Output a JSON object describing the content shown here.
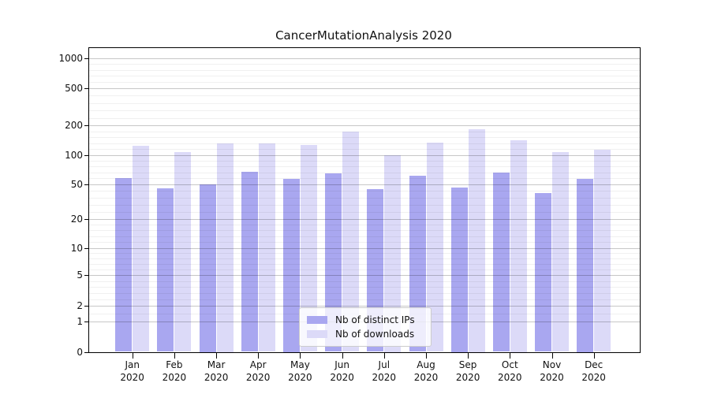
{
  "title": "CancerMutationAnalysis 2020",
  "year": "2020",
  "months": [
    "Jan",
    "Feb",
    "Mar",
    "Apr",
    "May",
    "Jun",
    "Jul",
    "Aug",
    "Sep",
    "Oct",
    "Nov",
    "Dec"
  ],
  "colors": {
    "distinct_ips_bar": "#a9a7f0",
    "downloads_bar": "#dcdaf8",
    "major_grid": "rgba(0,0,0,0.22)",
    "minor_grid": "rgba(0,0,0,0.06)"
  },
  "legend": {
    "items": [
      {
        "label": "Nb of distinct IPs",
        "color": "#a9a7f0"
      },
      {
        "label": "Nb of downloads",
        "color": "#dcdaf8"
      }
    ]
  },
  "chart_data": {
    "type": "bar",
    "title": "CancerMutationAnalysis 2020",
    "categories": [
      "Jan 2020",
      "Feb 2020",
      "Mar 2020",
      "Apr 2020",
      "May 2020",
      "Jun 2020",
      "Jul 2020",
      "Aug 2020",
      "Sep 2020",
      "Oct 2020",
      "Nov 2020",
      "Dec 2020"
    ],
    "series": [
      {
        "name": "Nb of distinct IPs",
        "color": "#a9a7f0",
        "values": [
          58,
          45,
          50,
          67,
          57,
          64,
          44,
          61,
          46,
          66,
          39,
          57
        ]
      },
      {
        "name": "Nb of downloads",
        "color": "#dcdaf8",
        "values": [
          124,
          106,
          132,
          131,
          127,
          173,
          100,
          134,
          184,
          142,
          106,
          113
        ]
      }
    ],
    "xlabel": "",
    "ylabel": "",
    "yticks": [
      0,
      1,
      2,
      5,
      10,
      20,
      50,
      100,
      200,
      500,
      1000
    ],
    "yscale": "quasi-log (1-2-5 ladder, linear 0-1 segment)",
    "ylim": [
      0,
      1000
    ],
    "grid": true,
    "legend_position": "bottom-center"
  }
}
